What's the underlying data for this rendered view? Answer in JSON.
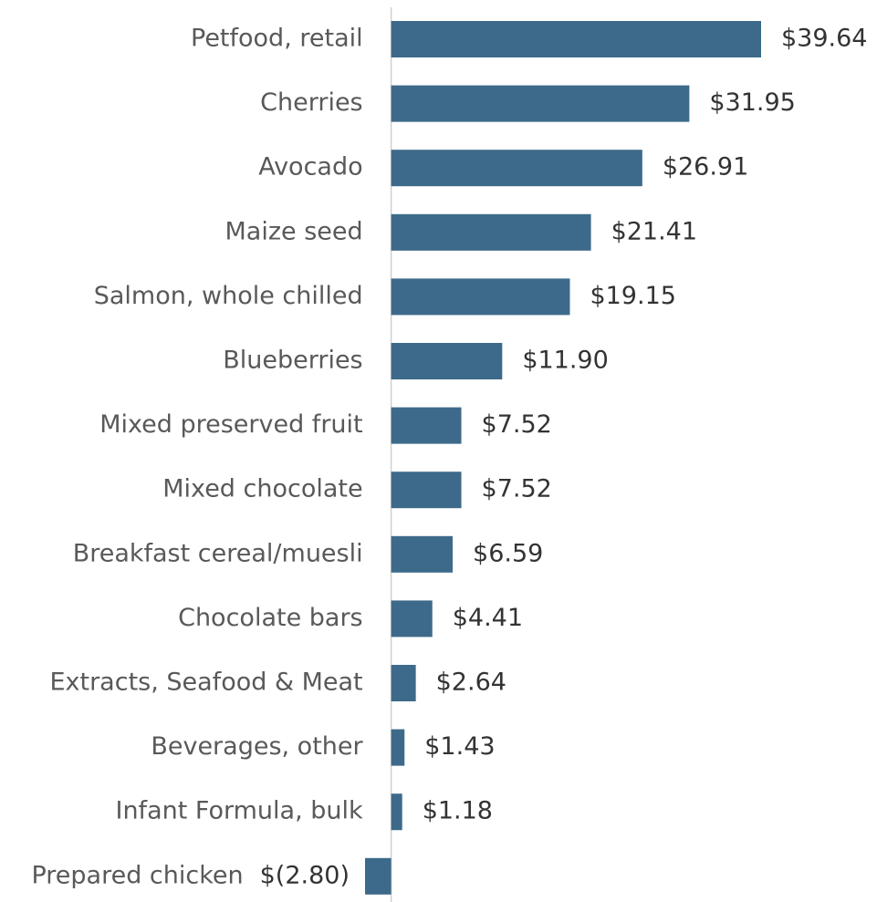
{
  "chart_data": {
    "type": "barh",
    "categories": [
      "Petfood, retail",
      "Cherries",
      "Avocado",
      "Maize seed",
      "Salmon, whole chilled",
      "Blueberries",
      "Mixed preserved fruit",
      "Mixed chocolate",
      "Breakfast cereal/muesli",
      "Chocolate bars",
      "Extracts, Seafood & Meat",
      "Beverages, other",
      "Infant Formula, bulk",
      "Prepared chicken"
    ],
    "values": [
      39.64,
      31.95,
      26.91,
      21.41,
      19.15,
      11.9,
      7.52,
      7.52,
      6.59,
      4.41,
      2.64,
      1.43,
      1.18,
      -2.8
    ],
    "value_labels": [
      "$39.64",
      "$31.95",
      "$26.91",
      "$21.41",
      "$19.15",
      "$11.90",
      "$7.52",
      "$7.52",
      "$6.59",
      "$4.41",
      "$2.64",
      "$1.43",
      "$1.18",
      "$(2.80)"
    ],
    "color": "#3d6a8a",
    "xlim": [
      -2.8,
      39.64
    ]
  }
}
